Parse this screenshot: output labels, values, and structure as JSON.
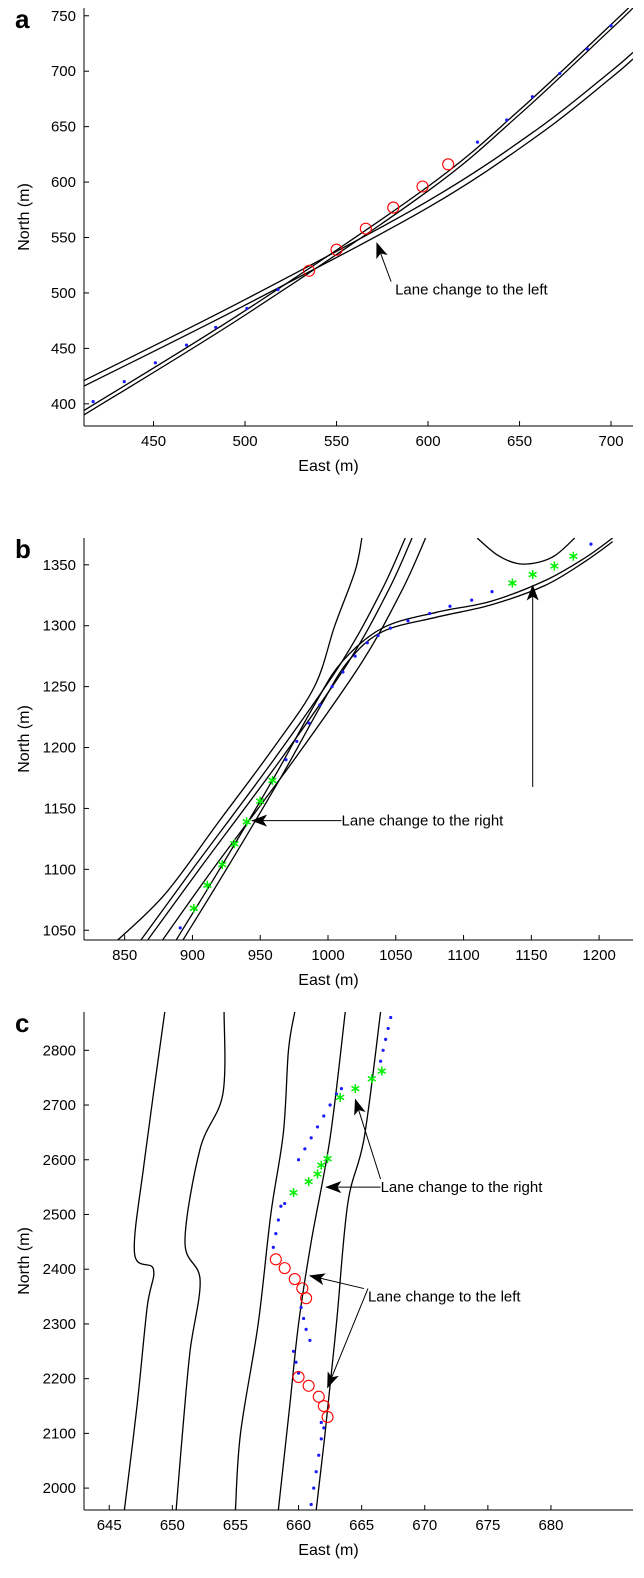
{
  "chart_data": [
    {
      "panel": "a",
      "type": "line",
      "xlabel": "East (m)",
      "ylabel": "North (m)",
      "xlim": [
        412,
        712
      ],
      "ylim": [
        380,
        757
      ],
      "xticks": [
        450,
        500,
        550,
        600,
        650,
        700
      ],
      "yticks": [
        400,
        450,
        500,
        550,
        600,
        650,
        700,
        750
      ],
      "grid": false,
      "road_lines": [
        [
          [
            412,
            416
          ],
          [
            500,
            489
          ],
          [
            600,
            577
          ],
          [
            660,
            642
          ],
          [
            700,
            694
          ],
          [
            712,
            711
          ]
        ],
        [
          [
            412,
            421
          ],
          [
            500,
            494
          ],
          [
            600,
            583
          ],
          [
            660,
            648
          ],
          [
            700,
            700
          ],
          [
            712,
            717
          ]
        ],
        [
          [
            412,
            390
          ],
          [
            500,
            480
          ],
          [
            600,
            592
          ],
          [
            650,
            661
          ],
          [
            700,
            738
          ],
          [
            712,
            757
          ]
        ],
        [
          [
            412,
            394
          ],
          [
            500,
            484
          ],
          [
            600,
            596
          ],
          [
            650,
            665
          ],
          [
            700,
            742
          ],
          [
            712,
            761
          ]
        ]
      ],
      "vehicle_track": {
        "marker": "dot",
        "color": "#1a1aff",
        "x": [
          417,
          434,
          451,
          468,
          484,
          501,
          518,
          627,
          643,
          657,
          672,
          687,
          700
        ],
        "y": [
          402,
          420,
          437,
          453,
          469,
          486,
          503,
          636,
          656,
          677,
          698,
          720,
          741
        ]
      },
      "lane_change_points": {
        "marker": "circle",
        "color": "#ff0000",
        "x": [
          535,
          550,
          566,
          581,
          597,
          611
        ],
        "y": [
          520,
          539,
          558,
          577,
          596,
          616
        ]
      },
      "annotations": [
        {
          "text": "Lane change to the left",
          "text_at": [
            582,
            503
          ],
          "arrow_to": [
            572,
            545
          ]
        }
      ]
    },
    {
      "panel": "b",
      "type": "line",
      "xlabel": "East (m)",
      "ylabel": "North (m)",
      "xlim": [
        820,
        1225
      ],
      "ylim": [
        1042,
        1372
      ],
      "xticks": [
        850,
        900,
        950,
        1000,
        1050,
        1100,
        1150,
        1200
      ],
      "yticks": [
        1050,
        1100,
        1150,
        1200,
        1250,
        1300,
        1350
      ],
      "grid": false,
      "road_lines": [
        [
          [
            845,
            1042
          ],
          [
            880,
            1080
          ],
          [
            920,
            1140
          ],
          [
            960,
            1200
          ],
          [
            990,
            1250
          ],
          [
            1005,
            1300
          ],
          [
            1020,
            1345
          ],
          [
            1025,
            1372
          ]
        ],
        [
          [
            862,
            1042
          ],
          [
            900,
            1100
          ],
          [
            960,
            1190
          ],
          [
            1010,
            1270
          ],
          [
            1040,
            1330
          ],
          [
            1057,
            1372
          ]
        ],
        [
          [
            867,
            1042
          ],
          [
            905,
            1100
          ],
          [
            965,
            1190
          ],
          [
            1015,
            1270
          ],
          [
            1045,
            1330
          ],
          [
            1062,
            1372
          ]
        ],
        [
          [
            878,
            1042
          ],
          [
            915,
            1100
          ],
          [
            975,
            1190
          ],
          [
            1025,
            1270
          ],
          [
            1055,
            1330
          ],
          [
            1072,
            1372
          ]
        ],
        [
          [
            888,
            1042
          ],
          [
            920,
            1100
          ],
          [
            960,
            1175
          ],
          [
            990,
            1235
          ],
          [
            1010,
            1270
          ],
          [
            1040,
            1298
          ],
          [
            1080,
            1311
          ],
          [
            1120,
            1320
          ],
          [
            1160,
            1337
          ],
          [
            1190,
            1356
          ],
          [
            1210,
            1372
          ]
        ],
        [
          [
            893,
            1042
          ],
          [
            925,
            1100
          ],
          [
            965,
            1175
          ],
          [
            995,
            1235
          ],
          [
            1015,
            1271
          ],
          [
            1040,
            1295
          ],
          [
            1080,
            1307
          ],
          [
            1120,
            1317
          ],
          [
            1160,
            1333
          ],
          [
            1190,
            1353
          ],
          [
            1210,
            1369
          ]
        ],
        [
          [
            1110,
            1372
          ],
          [
            1125,
            1358
          ],
          [
            1140,
            1351
          ],
          [
            1155,
            1352
          ],
          [
            1168,
            1358
          ],
          [
            1182,
            1372
          ]
        ]
      ],
      "vehicle_track": {
        "marker": "dot",
        "color": "#1a1aff",
        "x": [
          891,
          969,
          977,
          986,
          994,
          1003,
          1011,
          1020,
          1029,
          1037,
          1046,
          1059,
          1075,
          1090,
          1106,
          1121,
          1194
        ],
        "y": [
          1052,
          1190,
          1205,
          1220,
          1235,
          1250,
          1262,
          1275,
          1286,
          1292,
          1298,
          1304,
          1310,
          1316,
          1321,
          1328,
          1367
        ]
      },
      "lane_change_points": {
        "marker": "asterisk",
        "color": "#00ee00",
        "x": [
          901,
          911,
          922,
          931,
          940,
          950,
          959,
          1136,
          1151,
          1167,
          1181
        ],
        "y": [
          1068,
          1087,
          1104,
          1121,
          1139,
          1156,
          1173,
          1335,
          1342,
          1349,
          1357
        ]
      },
      "annotations": [
        {
          "text": "Lane change to the right",
          "text_at": [
            1010,
            1140
          ],
          "arrow_to": [
            944,
            1140
          ]
        },
        {
          "text": "Lane change to the right",
          "text_at": [
            1151,
            1161
          ],
          "arrow_to": [
            1151,
            1333
          ],
          "hide_text": true
        }
      ]
    },
    {
      "panel": "c",
      "type": "line",
      "xlabel": "East (m)",
      "ylabel": "North (m)",
      "xlim": [
        643,
        686.5
      ],
      "ylim": [
        1960,
        2870
      ],
      "xticks": [
        645,
        650,
        655,
        660,
        665,
        670,
        675,
        680
      ],
      "yticks": [
        2000,
        2100,
        2200,
        2300,
        2400,
        2500,
        2600,
        2700,
        2800
      ],
      "grid": false,
      "road_lines": [
        [
          [
            646.2,
            1960
          ],
          [
            647.2,
            2150
          ],
          [
            648.0,
            2330
          ],
          [
            648.5,
            2400
          ],
          [
            647.0,
            2430
          ],
          [
            647.8,
            2600
          ],
          [
            649.4,
            2870
          ]
        ],
        [
          [
            650.3,
            1960
          ],
          [
            650.8,
            2100
          ],
          [
            651.4,
            2250
          ],
          [
            652.2,
            2380
          ],
          [
            651.0,
            2450
          ],
          [
            652.2,
            2620
          ],
          [
            654.0,
            2720
          ],
          [
            654.1,
            2870
          ]
        ],
        [
          [
            655.0,
            1960
          ],
          [
            655.4,
            2100
          ],
          [
            656.8,
            2300
          ],
          [
            657.8,
            2500
          ],
          [
            658.8,
            2650
          ],
          [
            659.2,
            2800
          ],
          [
            659.7,
            2870
          ]
        ],
        [
          [
            658.4,
            1960
          ],
          [
            659.3,
            2150
          ],
          [
            660.0,
            2300
          ],
          [
            661.0,
            2450
          ],
          [
            662.5,
            2640
          ],
          [
            663.7,
            2870
          ]
        ],
        [
          [
            661.4,
            1960
          ],
          [
            662.1,
            2100
          ],
          [
            663.0,
            2300
          ],
          [
            663.9,
            2520
          ],
          [
            665.2,
            2640
          ],
          [
            666.5,
            2870
          ]
        ]
      ],
      "vehicle_track": {
        "marker": "dot",
        "color": "#1a1aff",
        "x": [
          661.0,
          661.2,
          661.4,
          661.6,
          661.8,
          662.0,
          661.8,
          660.9,
          660.6,
          660.4,
          660.2,
          660.0,
          659.8,
          659.6,
          658.0,
          658.2,
          658.4,
          658.6,
          658.9,
          660.0,
          660.5,
          661.0,
          661.5,
          662.0,
          662.5,
          663.0,
          663.4,
          666.5,
          666.7,
          666.9,
          667.1,
          667.3
        ],
        "y": [
          1970,
          2000,
          2030,
          2060,
          2090,
          2110,
          2120,
          2270,
          2290,
          2310,
          2330,
          2210,
          2230,
          2250,
          2440,
          2465,
          2490,
          2515,
          2520,
          2600,
          2620,
          2640,
          2660,
          2680,
          2700,
          2720,
          2730,
          2780,
          2800,
          2820,
          2840,
          2860
        ]
      },
      "lane_change_points": [
        {
          "marker": "circle",
          "color": "#ff0000",
          "x": [
            658.2,
            658.9,
            659.7,
            660.3,
            660.6
          ],
          "y": [
            2418,
            2402,
            2382,
            2365,
            2347
          ]
        },
        {
          "marker": "circle",
          "color": "#ff0000",
          "x": [
            660.0,
            660.8,
            661.6,
            662.0,
            662.3
          ],
          "y": [
            2203,
            2187,
            2167,
            2150,
            2130
          ]
        },
        {
          "marker": "asterisk",
          "color": "#00ee00",
          "x": [
            659.6,
            660.8,
            661.5,
            661.8,
            662.3
          ],
          "y": [
            2540,
            2560,
            2574,
            2590,
            2602
          ]
        },
        {
          "marker": "asterisk",
          "color": "#00ee00",
          "x": [
            663.3,
            664.5,
            665.8,
            666.6
          ],
          "y": [
            2714,
            2730,
            2748,
            2762
          ]
        }
      ],
      "annotations": [
        {
          "text": "Lane change to the right",
          "text_at": [
            666.5,
            2550
          ],
          "arrow_to": [
            662.2,
            2550
          ]
        },
        {
          "text": "Lane change to the right",
          "text_at": [
            666.5,
            2550
          ],
          "arrow_to": [
            664.5,
            2710
          ],
          "hide_text": true
        },
        {
          "text": "Lane change to the left",
          "text_at": [
            665.5,
            2350
          ],
          "arrow_to": [
            660.9,
            2388
          ]
        },
        {
          "text": "Lane change to the left",
          "text_at": [
            665.5,
            2350
          ],
          "arrow_to": [
            662.3,
            2184
          ],
          "hide_text": true
        }
      ]
    }
  ]
}
